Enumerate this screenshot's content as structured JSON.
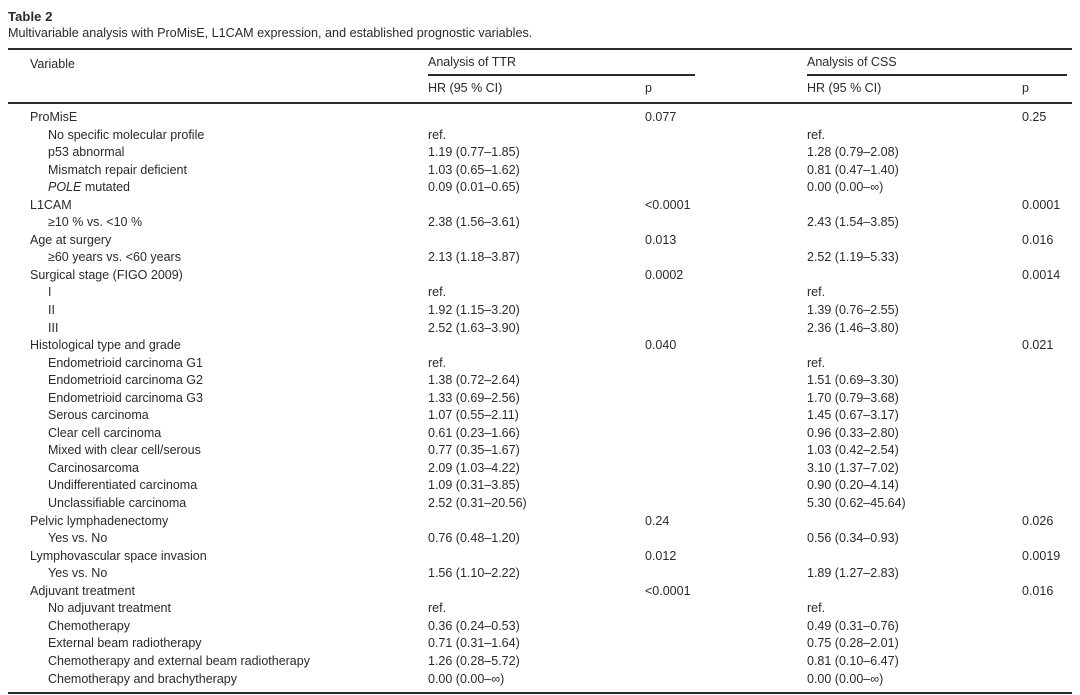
{
  "caption": {
    "label": "Table 2",
    "description": "Multivariable analysis with ProMisE, L1CAM expression, and established prognostic variables."
  },
  "colors": {
    "text": "#2a2a2a",
    "rule": "#2a2a2a",
    "background": "#ffffff"
  },
  "table": {
    "headers": {
      "variable": "Variable",
      "ttr_group": "Analysis of TTR",
      "css_group": "Analysis of CSS",
      "hr_ci": "HR (95 % CI)",
      "p": "p"
    },
    "rows": [
      {
        "label": "ProMisE",
        "indent": 0,
        "ttr_hr": "",
        "ttr_p": "0.077",
        "css_hr": "",
        "css_p": "0.25"
      },
      {
        "label": "No specific molecular profile",
        "indent": 1,
        "ttr_hr": "ref.",
        "ttr_p": "",
        "css_hr": "ref.",
        "css_p": ""
      },
      {
        "label": "p53 abnormal",
        "indent": 1,
        "ttr_hr": "1.19 (0.77–1.85)",
        "ttr_p": "",
        "css_hr": "1.28 (0.79–2.08)",
        "css_p": ""
      },
      {
        "label": "Mismatch repair deficient",
        "indent": 1,
        "ttr_hr": "1.03 (0.65–1.62)",
        "ttr_p": "",
        "css_hr": "0.81 (0.47–1.40)",
        "css_p": ""
      },
      {
        "label": " mutated",
        "italic_prefix": "POLE",
        "indent": 1,
        "ttr_hr": "0.09 (0.01–0.65)",
        "ttr_p": "",
        "css_hr": "0.00 (0.00–∞)",
        "css_p": ""
      },
      {
        "label": "L1CAM",
        "indent": 0,
        "ttr_hr": "",
        "ttr_p": "<0.0001",
        "css_hr": "",
        "css_p": "0.0001"
      },
      {
        "label": "≥10 % vs. <10 %",
        "indent": 1,
        "ttr_hr": "2.38 (1.56–3.61)",
        "ttr_p": "",
        "css_hr": "2.43 (1.54–3.85)",
        "css_p": ""
      },
      {
        "label": "Age at surgery",
        "indent": 0,
        "ttr_hr": "",
        "ttr_p": "0.013",
        "css_hr": "",
        "css_p": "0.016"
      },
      {
        "label": "≥60 years vs. <60 years",
        "indent": 1,
        "ttr_hr": "2.13 (1.18–3.87)",
        "ttr_p": "",
        "css_hr": "2.52 (1.19–5.33)",
        "css_p": ""
      },
      {
        "label": "Surgical stage (FIGO 2009)",
        "indent": 0,
        "ttr_hr": "",
        "ttr_p": "0.0002",
        "css_hr": "",
        "css_p": "0.0014"
      },
      {
        "label": "I",
        "indent": 1,
        "ttr_hr": "ref.",
        "ttr_p": "",
        "css_hr": "ref.",
        "css_p": ""
      },
      {
        "label": "II",
        "indent": 1,
        "ttr_hr": "1.92 (1.15–3.20)",
        "ttr_p": "",
        "css_hr": "1.39 (0.76–2.55)",
        "css_p": ""
      },
      {
        "label": "III",
        "indent": 1,
        "ttr_hr": "2.52 (1.63–3.90)",
        "ttr_p": "",
        "css_hr": "2.36 (1.46–3.80)",
        "css_p": ""
      },
      {
        "label": "Histological type and grade",
        "indent": 0,
        "ttr_hr": "",
        "ttr_p": "0.040",
        "css_hr": "",
        "css_p": "0.021"
      },
      {
        "label": "Endometrioid carcinoma G1",
        "indent": 1,
        "ttr_hr": "ref.",
        "ttr_p": "",
        "css_hr": "ref.",
        "css_p": ""
      },
      {
        "label": "Endometrioid carcinoma G2",
        "indent": 1,
        "ttr_hr": "1.38 (0.72–2.64)",
        "ttr_p": "",
        "css_hr": "1.51 (0.69–3.30)",
        "css_p": ""
      },
      {
        "label": "Endometrioid carcinoma G3",
        "indent": 1,
        "ttr_hr": "1.33 (0.69–2.56)",
        "ttr_p": "",
        "css_hr": "1.70 (0.79–3.68)",
        "css_p": ""
      },
      {
        "label": "Serous carcinoma",
        "indent": 1,
        "ttr_hr": "1.07 (0.55–2.11)",
        "ttr_p": "",
        "css_hr": "1.45 (0.67–3.17)",
        "css_p": ""
      },
      {
        "label": "Clear cell carcinoma",
        "indent": 1,
        "ttr_hr": "0.61 (0.23–1.66)",
        "ttr_p": "",
        "css_hr": "0.96 (0.33–2.80)",
        "css_p": ""
      },
      {
        "label": "Mixed with clear cell/serous",
        "indent": 1,
        "ttr_hr": "0.77 (0.35–1.67)",
        "ttr_p": "",
        "css_hr": "1.03 (0.42–2.54)",
        "css_p": ""
      },
      {
        "label": "Carcinosarcoma",
        "indent": 1,
        "ttr_hr": "2.09 (1.03–4.22)",
        "ttr_p": "",
        "css_hr": "3.10 (1.37–7.02)",
        "css_p": ""
      },
      {
        "label": "Undifferentiated carcinoma",
        "indent": 1,
        "ttr_hr": "1.09 (0.31–3.85)",
        "ttr_p": "",
        "css_hr": "0.90 (0.20–4.14)",
        "css_p": ""
      },
      {
        "label": "Unclassifiable carcinoma",
        "indent": 1,
        "ttr_hr": "2.52 (0.31–20.56)",
        "ttr_p": "",
        "css_hr": "5.30 (0.62–45.64)",
        "css_p": ""
      },
      {
        "label": "Pelvic lymphadenectomy",
        "indent": 0,
        "ttr_hr": "",
        "ttr_p": "0.24",
        "css_hr": "",
        "css_p": "0.026"
      },
      {
        "label": "Yes vs. No",
        "indent": 1,
        "ttr_hr": "0.76 (0.48–1.20)",
        "ttr_p": "",
        "css_hr": "0.56 (0.34–0.93)",
        "css_p": ""
      },
      {
        "label": "Lymphovascular space invasion",
        "indent": 0,
        "ttr_hr": "",
        "ttr_p": "0.012",
        "css_hr": "",
        "css_p": "0.0019"
      },
      {
        "label": "Yes vs. No",
        "indent": 1,
        "ttr_hr": "1.56 (1.10–2.22)",
        "ttr_p": "",
        "css_hr": "1.89 (1.27–2.83)",
        "css_p": ""
      },
      {
        "label": "Adjuvant treatment",
        "indent": 0,
        "ttr_hr": "",
        "ttr_p": "<0.0001",
        "css_hr": "",
        "css_p": "0.016"
      },
      {
        "label": "No adjuvant treatment",
        "indent": 1,
        "ttr_hr": "ref.",
        "ttr_p": "",
        "css_hr": "ref.",
        "css_p": ""
      },
      {
        "label": "Chemotherapy",
        "indent": 1,
        "ttr_hr": "0.36 (0.24–0.53)",
        "ttr_p": "",
        "css_hr": "0.49 (0.31–0.76)",
        "css_p": ""
      },
      {
        "label": "External beam radiotherapy",
        "indent": 1,
        "ttr_hr": "0.71 (0.31–1.64)",
        "ttr_p": "",
        "css_hr": "0.75 (0.28–2.01)",
        "css_p": ""
      },
      {
        "label": "Chemotherapy and external beam radiotherapy",
        "indent": 1,
        "ttr_hr": "1.26 (0.28–5.72)",
        "ttr_p": "",
        "css_hr": "0.81 (0.10–6.47)",
        "css_p": ""
      },
      {
        "label": "Chemotherapy and brachytherapy",
        "indent": 1,
        "ttr_hr": "0.00 (0.00–∞)",
        "ttr_p": "",
        "css_hr": "0.00 (0.00–∞)",
        "css_p": ""
      }
    ]
  }
}
